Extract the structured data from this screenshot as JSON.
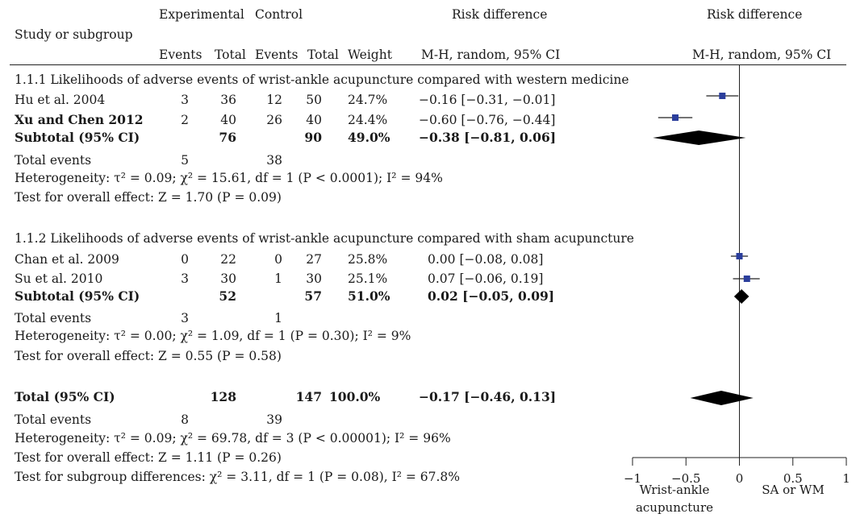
{
  "header": {
    "study_label": "Study or subgroup",
    "experimental": "Experimental",
    "control": "Control",
    "rd_label": "Risk difference",
    "rd_plot_label": "Risk difference",
    "events": "Events",
    "total": "Total",
    "events2": "Events",
    "total2": "Total",
    "weight": "Weight",
    "method": "M-H, random, 95% CI",
    "method_plot": "M-H, random, 95% CI"
  },
  "subgroups": [
    {
      "title": "1.1.1 Likelihoods of adverse events of wrist-ankle acupuncture compared with western medicine",
      "rows": [
        {
          "study": "Hu et al. 2004",
          "e_events": "3",
          "e_total": "36",
          "c_events": "12",
          "c_total": "50",
          "weight": "24.7%",
          "ci_text": "−0.16 [−0.31, −0.01]",
          "bold": false
        },
        {
          "study": "Xu and Chen 2012",
          "e_events": "2",
          "e_total": "40",
          "c_events": "26",
          "c_total": "40",
          "weight": "24.4%",
          "ci_text": "−0.60 [−0.76, −0.44]",
          "bold": true
        }
      ],
      "subtotal": {
        "label": "Subtotal (95% CI)",
        "e_total": "76",
        "c_total": "90",
        "weight": "49.0%",
        "ci_text": "−0.38 [−0.81, 0.06]"
      },
      "total_events": {
        "label": "Total events",
        "e": "5",
        "c": "38"
      },
      "heterogeneity": "Heterogeneity: τ² = 0.09; χ² = 15.61, df = 1 (P < 0.0001); I² = 94%",
      "overall": "Test for overall effect: Z = 1.70 (P = 0.09)"
    },
    {
      "title": "1.1.2 Likelihoods of adverse events of wrist-ankle acupuncture compared with sham acupuncture",
      "rows": [
        {
          "study": "Chan et al. 2009",
          "e_events": "0",
          "e_total": "22",
          "c_events": "0",
          "c_total": "27",
          "weight": "25.8%",
          "ci_text": "0.00 [−0.08, 0.08]",
          "bold": false
        },
        {
          "study": "Su et al. 2010",
          "e_events": "3",
          "e_total": "30",
          "c_events": "1",
          "c_total": "30",
          "weight": "25.1%",
          "ci_text": "0.07 [−0.06, 0.19]",
          "bold": false
        }
      ],
      "subtotal": {
        "label": "Subtotal (95% CI)",
        "e_total": "52",
        "c_total": "57",
        "weight": "51.0%",
        "ci_text": "0.02 [−0.05, 0.09]"
      },
      "total_events": {
        "label": "Total events",
        "e": "3",
        "c": "1"
      },
      "heterogeneity": "Heterogeneity: τ² = 0.00; χ² = 1.09, df = 1 (P = 0.30); I² = 9%",
      "overall": "Test for overall effect: Z = 0.55 (P = 0.58)"
    }
  ],
  "total": {
    "label": "Total (95% CI)",
    "e_total": "128",
    "c_total": "147",
    "weight": "100.0%",
    "ci_text": "−0.17 [−0.46, 0.13]",
    "events_label": "Total events",
    "e_events": "8",
    "c_events": "39",
    "heterogeneity": "Heterogeneity: τ² = 0.09; χ² = 69.78, df = 3 (P < 0.00001); I² = 96%",
    "overall": "Test for overall effect: Z = 1.11 (P = 0.26)",
    "subgroup_diff": "Test for subgroup differences: χ² = 3.11, df = 1 (P = 0.08), I² = 67.8%"
  },
  "chart_data": {
    "type": "scatter",
    "title": "Risk difference",
    "subtitle": "M-H, random, 95% CI",
    "xlim": [
      -1,
      1
    ],
    "xticks": [
      -1,
      -0.5,
      0,
      0.5,
      1
    ],
    "xtick_labels": [
      "−1",
      "−0.5",
      "0",
      "0.5",
      "1"
    ],
    "favours_left": "Wrist-ankle acupuncture",
    "favours_right": "SA or WM",
    "studies": [
      {
        "name": "Hu et al. 2004",
        "estimate": -0.16,
        "lower": -0.31,
        "upper": -0.01,
        "weight": 24.7
      },
      {
        "name": "Xu and Chen 2012",
        "estimate": -0.6,
        "lower": -0.76,
        "upper": -0.44,
        "weight": 24.4
      },
      {
        "name": "Chan et al. 2009",
        "estimate": 0.0,
        "lower": -0.08,
        "upper": 0.08,
        "weight": 25.8
      },
      {
        "name": "Su et al. 2010",
        "estimate": 0.07,
        "lower": -0.06,
        "upper": 0.19,
        "weight": 25.1
      }
    ],
    "pooled": [
      {
        "name": "Subtotal 1.1.1",
        "estimate": -0.38,
        "lower": -0.81,
        "upper": 0.06
      },
      {
        "name": "Subtotal 1.1.2",
        "estimate": 0.02,
        "lower": -0.05,
        "upper": 0.09
      },
      {
        "name": "Total",
        "estimate": -0.17,
        "lower": -0.46,
        "upper": 0.13
      }
    ],
    "colors": {
      "marker": "#2b3e9c",
      "diamond": "#000000",
      "line": "#222222"
    }
  }
}
